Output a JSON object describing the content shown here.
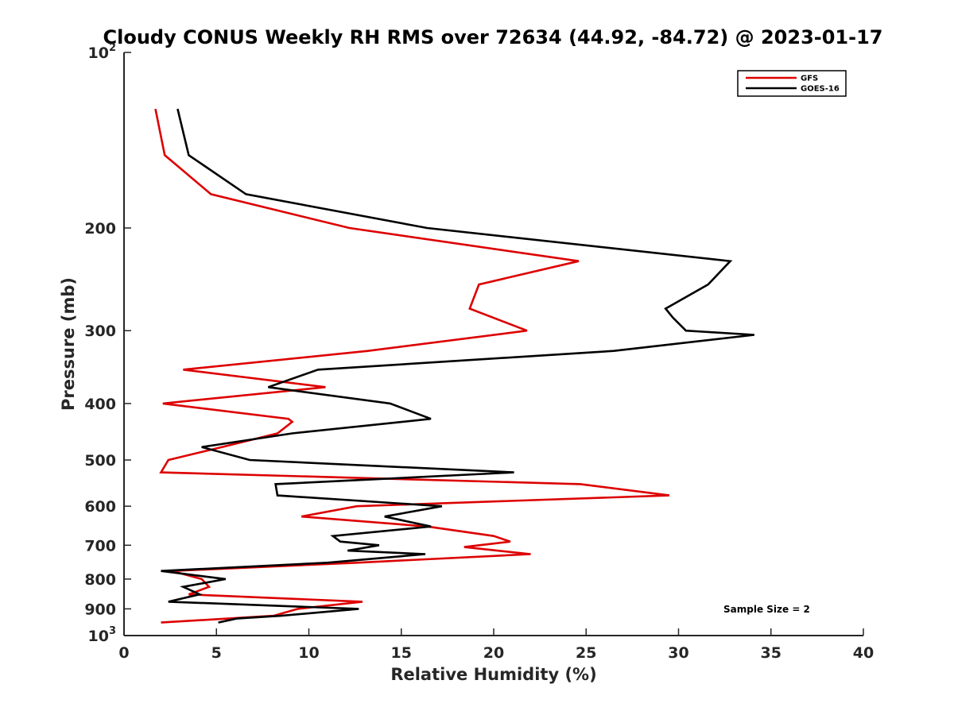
{
  "chart_data": {
    "type": "line",
    "title": "Cloudy CONUS Weekly RH RMS over 72634 (44.92, -84.72) @ 2023-01-17",
    "xlabel": "Relative Humidity (%)",
    "ylabel": "Pressure (mb)",
    "xlim": [
      0,
      40
    ],
    "ylim": [
      100,
      1000
    ],
    "y_scale": "log",
    "y_reversed": true,
    "x_ticks": [
      0,
      5,
      10,
      15,
      20,
      25,
      30,
      35,
      40
    ],
    "y_ticks": [
      200,
      300,
      400,
      500,
      600,
      700,
      800,
      900
    ],
    "y_tick_ends": {
      "top": {
        "base": "10",
        "exp": "2"
      },
      "bottom": {
        "base": "10",
        "exp": "3"
      }
    },
    "grid": false,
    "legend_position": "top-right",
    "annotation": "Sample Size = 2",
    "series": [
      {
        "name": "GFS",
        "color": "#dd0000",
        "points": [
          [
            1.7,
            125
          ],
          [
            2.2,
            150
          ],
          [
            4.7,
            175
          ],
          [
            12.2,
            200
          ],
          [
            24.6,
            228
          ],
          [
            19.2,
            250
          ],
          [
            18.7,
            275
          ],
          [
            21.8,
            300
          ],
          [
            13.2,
            325
          ],
          [
            3.2,
            350
          ],
          [
            10.9,
            375
          ],
          [
            2.1,
            400
          ],
          [
            8.9,
            425
          ],
          [
            9.1,
            430
          ],
          [
            8.3,
            450
          ],
          [
            5.3,
            475
          ],
          [
            2.4,
            500
          ],
          [
            2.0,
            525
          ],
          [
            24.7,
            550
          ],
          [
            29.5,
            575
          ],
          [
            12.6,
            600
          ],
          [
            9.6,
            625
          ],
          [
            16.4,
            650
          ],
          [
            20.0,
            675
          ],
          [
            20.9,
            690
          ],
          [
            18.4,
            705
          ],
          [
            22.0,
            725
          ],
          [
            12.6,
            750
          ],
          [
            2.6,
            775
          ],
          [
            4.2,
            800
          ],
          [
            4.6,
            825
          ],
          [
            3.5,
            850
          ],
          [
            12.9,
            875
          ],
          [
            9.4,
            900
          ],
          [
            8.1,
            925
          ],
          [
            2.0,
            950
          ]
        ]
      },
      {
        "name": "GOES-16",
        "color": "#000000",
        "points": [
          [
            2.9,
            125
          ],
          [
            3.5,
            150
          ],
          [
            6.6,
            175
          ],
          [
            16.4,
            200
          ],
          [
            32.8,
            228
          ],
          [
            31.6,
            250
          ],
          [
            29.3,
            275
          ],
          [
            29.7,
            285
          ],
          [
            30.4,
            300
          ],
          [
            34.1,
            305
          ],
          [
            26.5,
            325
          ],
          [
            10.5,
            350
          ],
          [
            7.8,
            375
          ],
          [
            14.4,
            400
          ],
          [
            16.6,
            425
          ],
          [
            9.1,
            450
          ],
          [
            4.2,
            475
          ],
          [
            6.8,
            500
          ],
          [
            21.1,
            525
          ],
          [
            8.2,
            550
          ],
          [
            8.3,
            575
          ],
          [
            17.2,
            600
          ],
          [
            14.1,
            625
          ],
          [
            16.6,
            650
          ],
          [
            11.3,
            675
          ],
          [
            11.7,
            690
          ],
          [
            13.8,
            700
          ],
          [
            12.1,
            715
          ],
          [
            16.3,
            725
          ],
          [
            11.0,
            750
          ],
          [
            2.0,
            775
          ],
          [
            5.5,
            800
          ],
          [
            3.2,
            825
          ],
          [
            4.1,
            850
          ],
          [
            2.4,
            875
          ],
          [
            12.7,
            900
          ],
          [
            8.5,
            925
          ],
          [
            6.1,
            935
          ],
          [
            5.1,
            950
          ]
        ]
      }
    ]
  }
}
